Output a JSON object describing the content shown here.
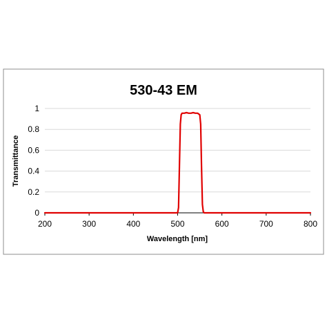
{
  "chart_data": {
    "type": "line",
    "title": "530-43 EM",
    "xlabel": "Wavelength [nm]",
    "ylabel": "Transmittance",
    "xlim": [
      200,
      800
    ],
    "ylim": [
      0,
      1
    ],
    "x_ticks": [
      200,
      300,
      400,
      500,
      600,
      700,
      800
    ],
    "y_ticks": [
      0,
      0.2,
      0.4,
      0.6,
      0.8,
      1
    ],
    "y_tick_labels": [
      "0",
      "0.2",
      "0.4",
      "0.6",
      "0.8",
      "1"
    ],
    "grid": true,
    "legend": "none",
    "series": [
      {
        "color": "#e00000",
        "x": [
          200,
          490,
          500,
          502,
          504,
          506,
          508,
          510,
          515,
          520,
          525,
          530,
          535,
          540,
          545,
          550,
          552,
          554,
          556,
          558,
          560,
          570,
          800
        ],
        "y": [
          0,
          0,
          0,
          0.05,
          0.45,
          0.85,
          0.94,
          0.955,
          0.955,
          0.96,
          0.955,
          0.955,
          0.96,
          0.955,
          0.955,
          0.94,
          0.85,
          0.45,
          0.08,
          0.01,
          0,
          0,
          0
        ]
      }
    ]
  }
}
